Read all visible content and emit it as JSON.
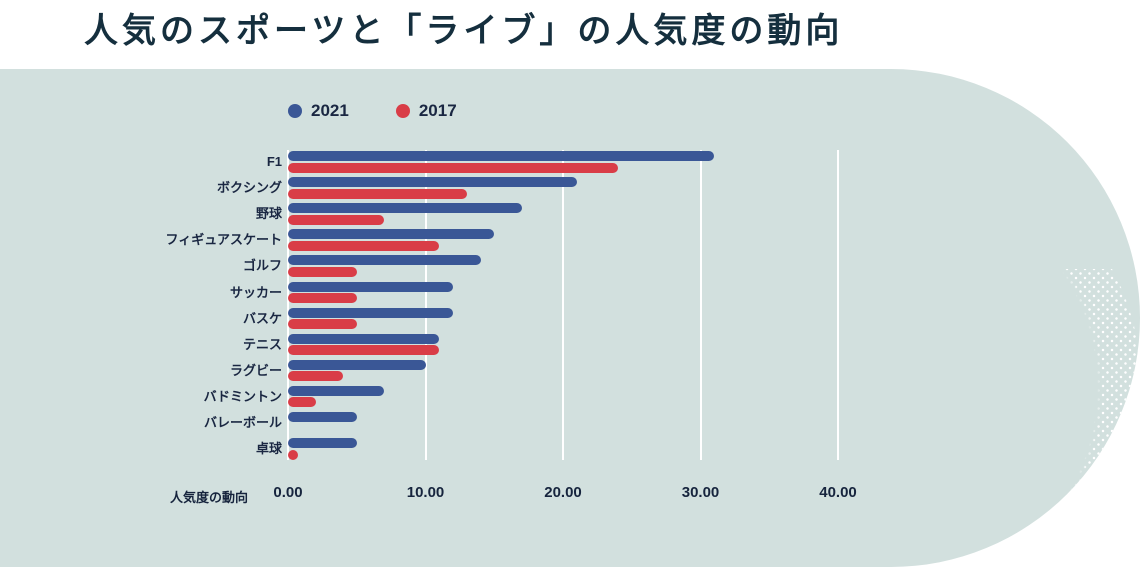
{
  "title": "人気のスポーツと「ライブ」の人気度の動向",
  "colors": {
    "background": "#ffffff",
    "panel": "#d2e0de",
    "series_2021": "#3a5796",
    "series_2017": "#d93d47",
    "text": "#1a2742",
    "title_text": "#152f3e",
    "gridline": "#ffffff",
    "halftone_dots": "#ffffff"
  },
  "chart_data": {
    "type": "bar",
    "orientation": "horizontal",
    "title": "人気のスポーツと「ライブ」の人気度の動向",
    "categories": [
      "F1",
      "ボクシング",
      "野球",
      "フィギュアスケート",
      "ゴルフ",
      "サッカー",
      "バスケ",
      "テニス",
      "ラグビー",
      "バドミントン",
      "バレーボール",
      "卓球"
    ],
    "series": [
      {
        "name": "2021",
        "color": "#3a5796",
        "values": [
          31,
          21,
          17,
          15,
          14,
          12,
          12,
          11,
          10,
          7,
          5,
          5
        ]
      },
      {
        "name": "2017",
        "color": "#d93d47",
        "values": [
          24,
          13,
          7,
          11,
          5,
          5,
          5,
          11,
          4,
          2,
          null,
          0.5
        ]
      }
    ],
    "xlabel": "人気度の動向",
    "xlim": [
      0,
      40
    ],
    "xticks": [
      0,
      10,
      20,
      30,
      40
    ],
    "xtick_labels": [
      "0.00",
      "10.00",
      "20.00",
      "30.00",
      "40.00"
    ],
    "grid": "vertical",
    "legend_position": "top-left"
  }
}
